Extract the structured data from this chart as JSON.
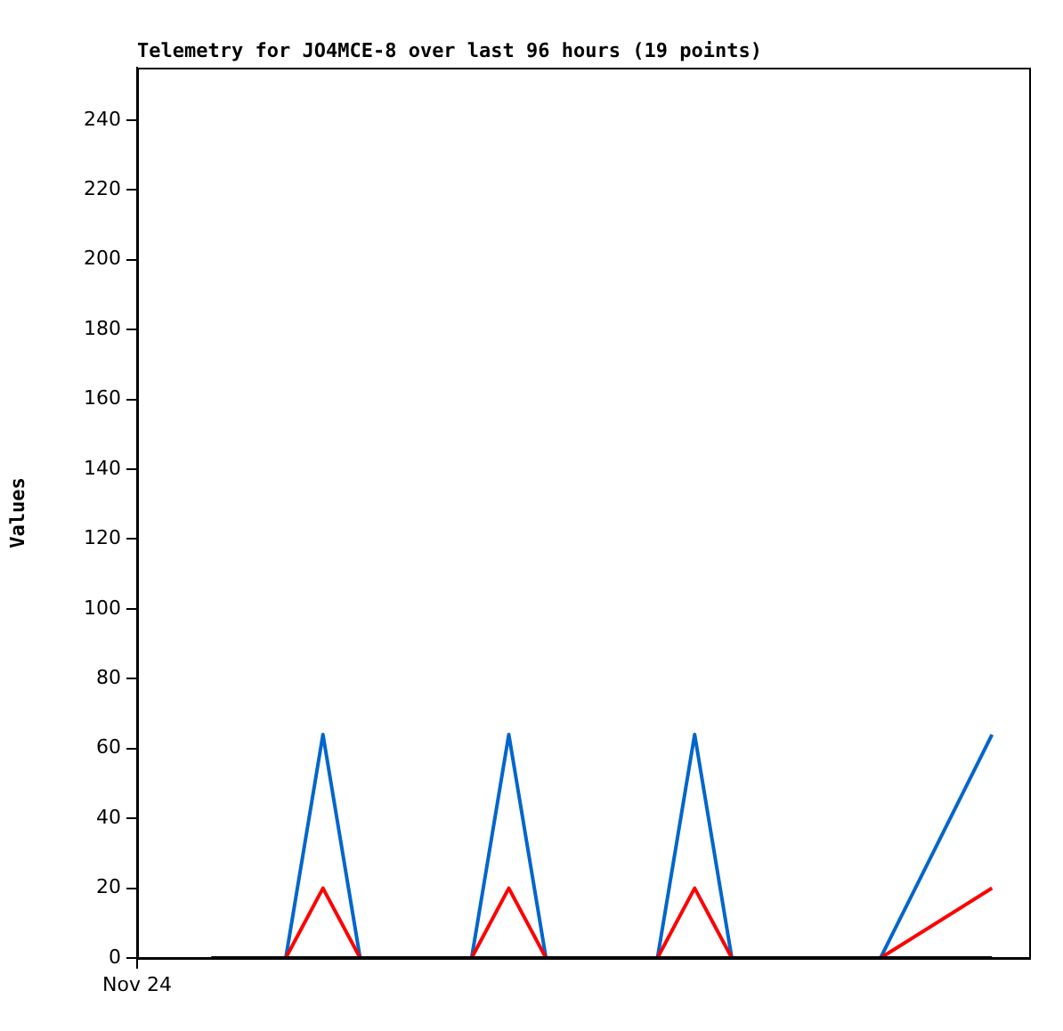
{
  "chart_data": {
    "type": "line",
    "title": "Telemetry for JO4MCE-8 over last 96 hours (19 points)",
    "ylabel": "Values",
    "categories": [
      "Nov 24",
      null,
      null,
      null,
      null,
      null,
      null,
      null,
      null,
      null,
      null,
      null,
      null,
      null,
      null,
      null,
      null,
      null,
      null,
      null,
      null,
      null,
      null,
      null,
      null
    ],
    "ylim": [
      0,
      255
    ],
    "yticks": [
      0,
      20,
      40,
      60,
      80,
      100,
      120,
      140,
      160,
      180,
      200,
      220,
      240
    ],
    "series": [
      {
        "color": "#000000",
        "values": [
          null,
          null,
          0,
          0,
          0,
          0,
          0,
          0,
          0,
          0,
          0,
          0,
          0,
          0,
          0,
          0,
          0,
          0,
          0,
          0,
          0,
          0,
          0,
          0,
          null
        ]
      },
      {
        "color": "#ff0000",
        "values": [
          null,
          null,
          0,
          0,
          0,
          20,
          0,
          0,
          0,
          0,
          20,
          0,
          0,
          0,
          0,
          20,
          0,
          0,
          0,
          0,
          0,
          null,
          null,
          20,
          null
        ]
      },
      {
        "color": "#0066cc",
        "values": [
          null,
          null,
          0,
          0,
          0,
          64,
          0,
          0,
          0,
          0,
          64,
          0,
          0,
          0,
          0,
          64,
          0,
          0,
          0,
          0,
          0,
          null,
          null,
          64,
          null
        ]
      }
    ],
    "grid": false,
    "legend": false,
    "marker": "none",
    "line_style": "solid"
  }
}
